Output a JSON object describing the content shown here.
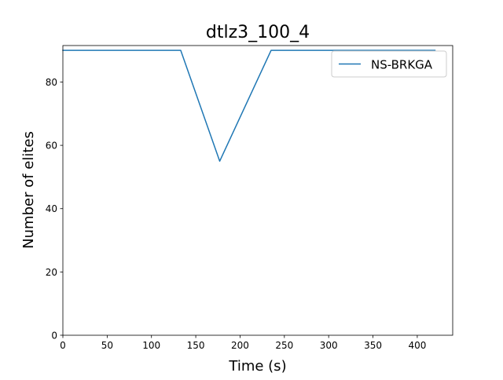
{
  "chart_data": {
    "type": "line",
    "title": "dtlz3_100_4",
    "xlabel": "Time (s)",
    "ylabel": "Number of elites",
    "xlim": [
      0,
      440
    ],
    "ylim": [
      0,
      90
    ],
    "xticks": [
      0,
      50,
      100,
      150,
      200,
      250,
      300,
      350,
      400
    ],
    "yticks": [
      0,
      20,
      40,
      60,
      80
    ],
    "grid": false,
    "legend": "top-right",
    "series": [
      {
        "name": "NS-BRKGA",
        "color": "#1f77b4",
        "x": [
          0,
          133,
          177,
          235,
          420
        ],
        "y": [
          90,
          90,
          55,
          90,
          90
        ]
      }
    ]
  }
}
